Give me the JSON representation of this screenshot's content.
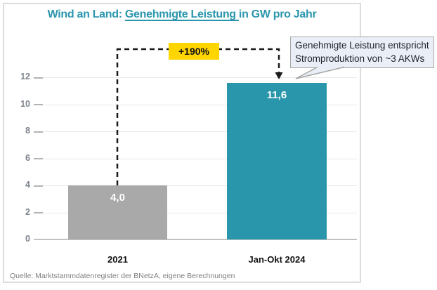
{
  "title": {
    "prefix": "Wind an Land: ",
    "underlined": "Genehmigte Leistung ",
    "suffix": "in GW pro Jahr"
  },
  "annotation": {
    "percent_label": "+190%",
    "callout_line1": "Genehmigte Leistung entspricht",
    "callout_line2": "Stromproduktion von ~3 AKWs"
  },
  "source": "Quelle: Marktstammdatenregister der BNetzA, eigene Berechnungen",
  "colors": {
    "accent_teal": "#2a96ab",
    "bar_gray": "#a9a9a9",
    "highlight_yellow": "#ffd500",
    "callout_fill": "#eaeff7",
    "callout_border": "#a6a6a6",
    "title_teal": "#2b96ad",
    "arrow_black": "#1a1a1a"
  },
  "chart_data": {
    "type": "bar",
    "title": "Wind an Land: Genehmigte Leistung in GW pro Jahr",
    "categories": [
      "2021",
      "Jan-Okt 2024"
    ],
    "values": [
      4.0,
      11.6
    ],
    "value_labels": [
      "4,0",
      "11,6"
    ],
    "bar_colors": [
      "#a9a9a9",
      "#2a96ab"
    ],
    "ylim": [
      0,
      12
    ],
    "yticks": [
      0,
      2,
      4,
      6,
      8,
      10,
      12
    ],
    "grid": true,
    "unit": "GW",
    "legend": null,
    "annotations": [
      "+190%",
      "Genehmigte Leistung entspricht Stromproduktion von ~3 AKWs"
    ]
  }
}
